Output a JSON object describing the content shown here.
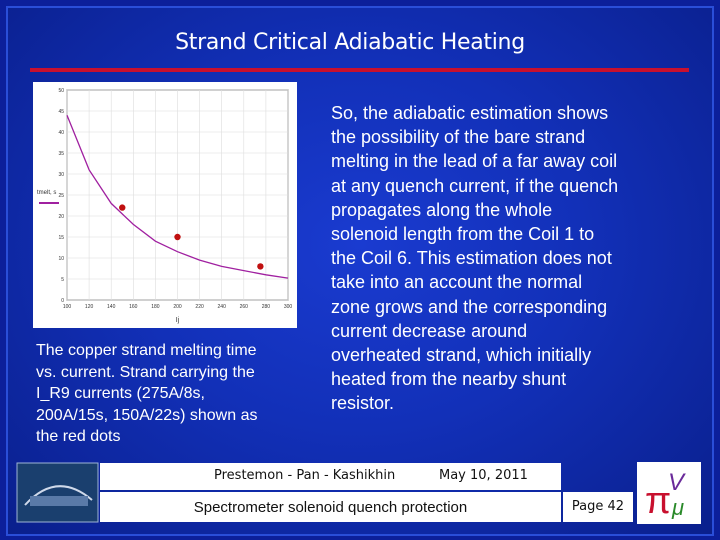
{
  "title": "Strand Critical Adiabatic Heating",
  "caption": [
    "The copper strand melting time",
    "vs. current. Strand carrying the",
    "I_R9 currents (275A/8s,",
    "200A/15s, 150A/22s) shown as",
    "the red dots"
  ],
  "body": [
    "So, the adiabatic estimation shows",
    "the possibility of the bare strand",
    "melting in the lead of a far away coil",
    "at any quench current, if the quench",
    "propagates along the whole",
    "solenoid length from the Coil 1 to",
    "the Coil 6. This estimation does not",
    "take into an account the normal",
    "zone grows and the corresponding",
    "current decrease around",
    "overheated strand, which initially",
    "heated from the nearby shunt",
    "resistor."
  ],
  "footer": {
    "authors": "Prestemon - Pan - Kashikhin",
    "date": "May 10, 2011",
    "presentation": "Spectrometer solenoid quench protection",
    "page": "Page 42"
  },
  "chart_data": {
    "type": "line",
    "x_label": "Ij",
    "y_label": "tmelt, s",
    "series": [
      {
        "color": "#a020a0",
        "x": [
          100,
          120,
          140,
          160,
          180,
          200,
          220,
          240,
          260,
          280,
          300
        ],
        "values": [
          44,
          31,
          23,
          18,
          14,
          11.5,
          9.5,
          8,
          7,
          6,
          5.2
        ],
        "markers": false
      },
      {
        "color": "#c01010",
        "x": [
          150,
          200,
          275
        ],
        "values": [
          22,
          15,
          8
        ],
        "markers": true
      }
    ],
    "xlim": [
      100,
      300
    ],
    "xticks": [
      100,
      120,
      140,
      160,
      180,
      200,
      220,
      240,
      260,
      280,
      300
    ],
    "ylim": [
      0,
      50
    ],
    "yticks": [
      0,
      5,
      10,
      15,
      20,
      25,
      30,
      35,
      40,
      45,
      50
    ]
  }
}
